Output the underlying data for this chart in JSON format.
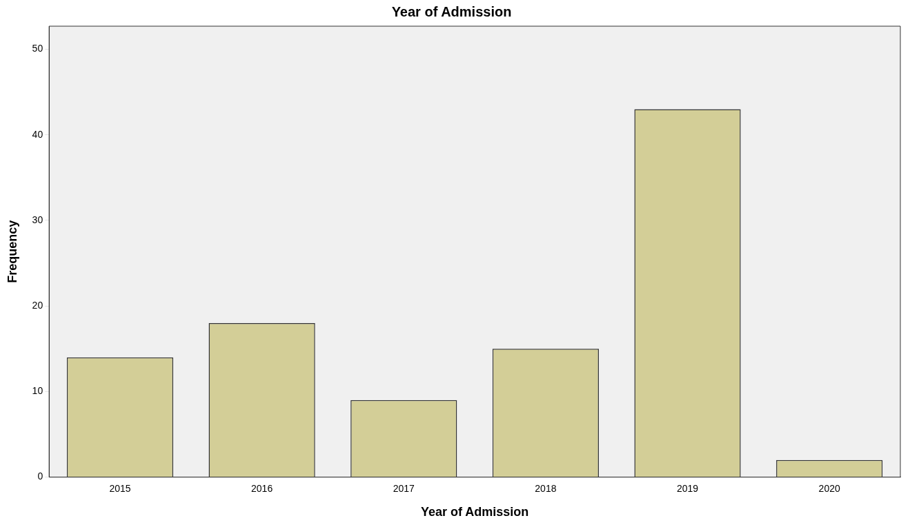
{
  "chart_data": {
    "type": "bar",
    "title": "Year of Admission",
    "xlabel": "Year of Admission",
    "ylabel": "Frequency",
    "categories": [
      "2015",
      "2016",
      "2017",
      "2018",
      "2019",
      "2020"
    ],
    "values": [
      14,
      18,
      9,
      15,
      43,
      2
    ],
    "color": "#d3ce97",
    "ylim": [
      0,
      52.7
    ],
    "yticks": [
      0,
      10,
      20,
      30,
      40,
      50
    ],
    "grid": false,
    "legend": false
  }
}
